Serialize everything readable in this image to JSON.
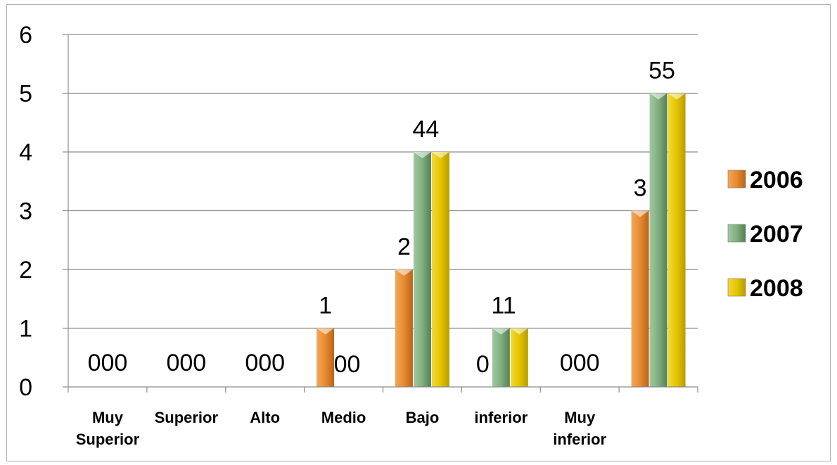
{
  "chart_data": {
    "type": "bar",
    "categories": [
      "Muy Superior",
      "Superior",
      "Alto",
      "Medio",
      "Bajo",
      "inferior",
      "Muy inferior",
      ""
    ],
    "category_lines": [
      [
        "Muy",
        "Superior"
      ],
      [
        "Superior"
      ],
      [
        "Alto"
      ],
      [
        "Medio"
      ],
      [
        "Bajo"
      ],
      [
        "inferior"
      ],
      [
        "Muy",
        "inferior"
      ],
      [
        ""
      ]
    ],
    "series": [
      {
        "name": "2006",
        "values": [
          0,
          0,
          0,
          1,
          2,
          0,
          0,
          3
        ],
        "color": "#e88a2e"
      },
      {
        "name": "2007",
        "values": [
          0,
          0,
          0,
          0,
          4,
          1,
          0,
          5
        ],
        "color": "#7fae7f"
      },
      {
        "name": "2008",
        "values": [
          0,
          0,
          0,
          0,
          4,
          1,
          0,
          5
        ],
        "color": "#e4c400"
      }
    ],
    "ylim": [
      0,
      6
    ],
    "yticks": [
      0,
      1,
      2,
      3,
      4,
      5,
      6
    ],
    "grid": true,
    "legend": "right",
    "data_labels": [
      {
        "category": "Muy Superior",
        "text": "000"
      },
      {
        "category": "Superior",
        "text": "000"
      },
      {
        "category": "Alto",
        "text": "000"
      },
      {
        "category": "Medio",
        "text": "1",
        "series": "2006"
      },
      {
        "category": "Medio",
        "text": "00",
        "series": "2007"
      },
      {
        "category": "Bajo",
        "text": "2",
        "series": "2006"
      },
      {
        "category": "Bajo",
        "text": "44",
        "series": "2007"
      },
      {
        "category": "inferior",
        "text": "0",
        "series": "2006"
      },
      {
        "category": "inferior",
        "text": "11",
        "series": "2007"
      },
      {
        "category": "Muy inferior",
        "text": "000"
      },
      {
        "category": "",
        "text": "3",
        "series": "2006"
      },
      {
        "category": "",
        "text": "55",
        "series": "2007"
      }
    ]
  }
}
